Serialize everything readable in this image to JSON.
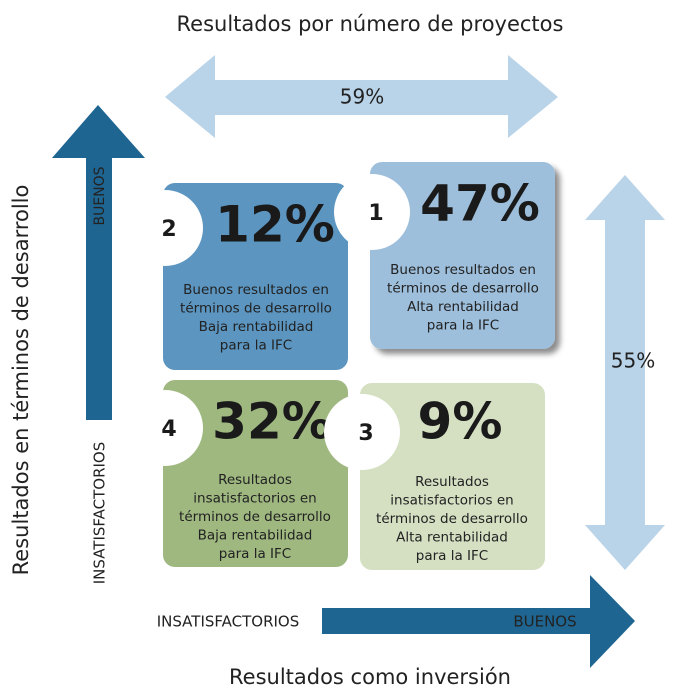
{
  "title_top": "Resultados por número de proyectos",
  "title_bottom": "Resultados como inversión",
  "left_axis_label": "Resultados en términos de desarrollo",
  "horizontal_arrow_label": "59%",
  "vertical_arrow_label": "55%",
  "y_axis": {
    "high": "BUENOS",
    "low": "INSATISFACTORIOS"
  },
  "x_axis": {
    "low": "INSATISFACTORIOS",
    "high": "BUENOS"
  },
  "quadrants": [
    {
      "number": "2",
      "percent": "12%",
      "lines": [
        "Buenos resultados en",
        "términos de desarrollo",
        "Baja rentabilidad",
        "para la IFC"
      ]
    },
    {
      "number": "1",
      "percent": "47%",
      "lines": [
        "Buenos resultados en",
        "términos de desarrollo",
        "Alta rentabilidad",
        "para la IFC"
      ]
    },
    {
      "number": "4",
      "percent": "32%",
      "lines": [
        "Resultados",
        "insatisfactorios en",
        "términos de desarrollo",
        "Baja rentabilidad",
        "para la IFC"
      ]
    },
    {
      "number": "3",
      "percent": "9%",
      "lines": [
        "Resultados",
        "insatisfactorios en",
        "términos de desarrollo",
        "Alta rentabilidad",
        "para la IFC"
      ]
    }
  ]
}
